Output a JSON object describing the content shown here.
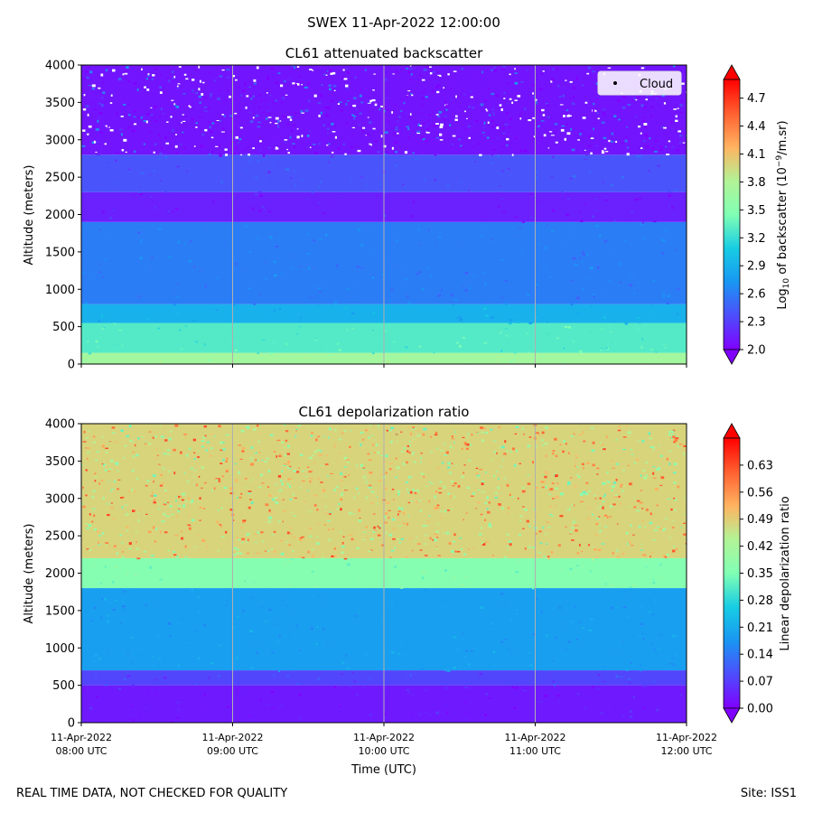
{
  "suptitle": "SWEX 11-Apr-2022 12:00:00",
  "footer": {
    "left": "REAL TIME DATA, NOT CHECKED FOR QUALITY",
    "right": "Site: ISS1"
  },
  "chart_data": [
    {
      "type": "heatmap",
      "title": "CL61 attenuated backscatter",
      "ylabel": "Altitude (meters)",
      "ylim": [
        0,
        4000
      ],
      "y_ticks": [
        "0",
        "500",
        "1000",
        "1500",
        "2000",
        "2500",
        "3000",
        "3500",
        "4000"
      ],
      "y_tick_values": [
        0,
        500,
        1000,
        1500,
        2000,
        2500,
        3000,
        3500,
        4000
      ],
      "x_ticks_shown": false,
      "grid": "vertical lines at hourly ticks",
      "legend": {
        "entries": [
          "Cloud"
        ],
        "placement": "top-right",
        "marker": "black dot"
      },
      "colorbar": {
        "label_prefix": "Log",
        "label_sub": "10",
        "label_mid": " of backscatter (10",
        "label_sup": "−9",
        "label_suffix": "/m.sr)",
        "range": [
          2.0,
          4.9
        ],
        "ticks": [
          "2.0",
          "2.3",
          "2.6",
          "2.9",
          "3.2",
          "3.5",
          "3.8",
          "4.1",
          "4.4",
          "4.7"
        ],
        "tick_values": [
          2.0,
          2.3,
          2.6,
          2.9,
          3.2,
          3.5,
          3.8,
          4.1,
          4.4,
          4.7
        ],
        "colormap": "rainbow",
        "extend": "both"
      },
      "layers_by_altitude": [
        {
          "from": 0,
          "to": 150,
          "value": 3.7
        },
        {
          "from": 150,
          "to": 550,
          "value": 3.3
        },
        {
          "from": 550,
          "to": 800,
          "value": 2.9
        },
        {
          "from": 800,
          "to": 1900,
          "value": 2.6
        },
        {
          "from": 1900,
          "to": 2300,
          "value": 2.15
        },
        {
          "from": 2300,
          "to": 2800,
          "value": 2.4
        },
        {
          "from": 2800,
          "to": 4000,
          "value": 2.1,
          "note": "noisy with gaps"
        }
      ]
    },
    {
      "type": "heatmap",
      "title": "CL61 depolarization ratio",
      "ylabel": "Altitude (meters)",
      "xlabel": "Time (UTC)",
      "ylim": [
        0,
        4000
      ],
      "y_ticks": [
        "0",
        "500",
        "1000",
        "1500",
        "2000",
        "2500",
        "3000",
        "3500",
        "4000"
      ],
      "y_tick_values": [
        0,
        500,
        1000,
        1500,
        2000,
        2500,
        3000,
        3500,
        4000
      ],
      "x_ticks": [
        [
          "11-Apr-2022",
          "08:00 UTC"
        ],
        [
          "11-Apr-2022",
          "09:00 UTC"
        ],
        [
          "11-Apr-2022",
          "10:00 UTC"
        ],
        [
          "11-Apr-2022",
          "11:00 UTC"
        ],
        [
          "11-Apr-2022",
          "12:00 UTC"
        ]
      ],
      "xlim": [
        "2022-04-11 08:00",
        "2022-04-11 12:00"
      ],
      "grid": "vertical lines at hourly ticks",
      "colorbar": {
        "label": "Linear depolarization ratio",
        "range": [
          0.0,
          0.7
        ],
        "ticks": [
          "0.00",
          "0.07",
          "0.14",
          "0.21",
          "0.28",
          "0.35",
          "0.42",
          "0.49",
          "0.56",
          "0.63"
        ],
        "tick_values": [
          0.0,
          0.07,
          0.14,
          0.21,
          0.28,
          0.35,
          0.42,
          0.49,
          0.56,
          0.63
        ],
        "colormap": "rainbow",
        "extend": "both"
      },
      "layers_by_altitude": [
        {
          "from": 0,
          "to": 500,
          "value": 0.03
        },
        {
          "from": 500,
          "to": 700,
          "value": 0.08
        },
        {
          "from": 700,
          "to": 1800,
          "value": 0.19
        },
        {
          "from": 1800,
          "to": 2200,
          "value": 0.36
        },
        {
          "from": 2200,
          "to": 4000,
          "value": 0.48,
          "note": "noisy"
        }
      ]
    }
  ]
}
